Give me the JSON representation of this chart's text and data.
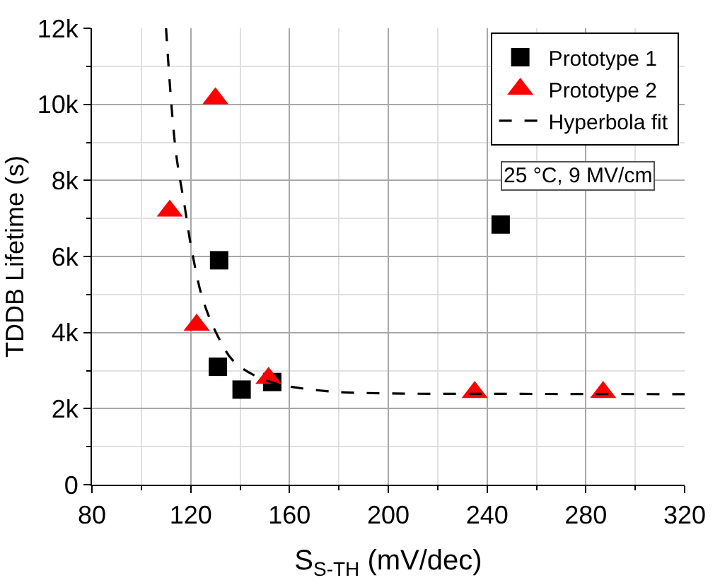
{
  "chart_data": {
    "type": "scatter",
    "xlabel": "S$_{S-TH}$ (mV/dec)",
    "ylabel": "TDDB Lifetime (s)",
    "xlim": [
      80,
      320
    ],
    "xticks": [
      80,
      120,
      160,
      200,
      240,
      280,
      320
    ],
    "ylim": [
      0,
      12000
    ],
    "yticks": [
      {
        "value": 0,
        "label": "0"
      },
      {
        "value": 2000,
        "label": "2k"
      },
      {
        "value": 4000,
        "label": "4k"
      },
      {
        "value": 6000,
        "label": "6k"
      },
      {
        "value": 8000,
        "label": "8k"
      },
      {
        "value": 10000,
        "label": "10k"
      },
      {
        "value": 12000,
        "label": "12k"
      }
    ],
    "grid": true,
    "legend": "top right",
    "series": [
      {
        "name": "Prototype 1",
        "color": "#000000",
        "marker": "square",
        "x": [
          131.5,
          131,
          140.6,
          153,
          245.5
        ],
        "values": [
          5900,
          3100,
          2500,
          2700,
          6840
        ]
      },
      {
        "name": "Prototype 2",
        "color": "#ff0000",
        "marker": "triangle",
        "x": [
          130,
          111.5,
          122.4,
          151.5,
          235,
          287
        ],
        "values": [
          10150,
          7200,
          4200,
          2800,
          2430,
          2430
        ]
      },
      {
        "name": "Hyperbola fit",
        "color": "#000000",
        "type": "line",
        "marker": "none",
        "line_style": "dashed",
        "x": [
          110,
          113.9,
          117.6,
          120.6,
          125,
          131,
          137,
          145,
          155,
          175,
          200,
          240,
          280,
          320
        ],
        "values": [
          12000,
          8800,
          7300,
          6100,
          4850,
          3900,
          3270,
          2900,
          2650,
          2460,
          2400,
          2390,
          2385,
          2380
        ]
      }
    ],
    "annotations": [
      "25 °C, 9 MV/cm"
    ]
  }
}
